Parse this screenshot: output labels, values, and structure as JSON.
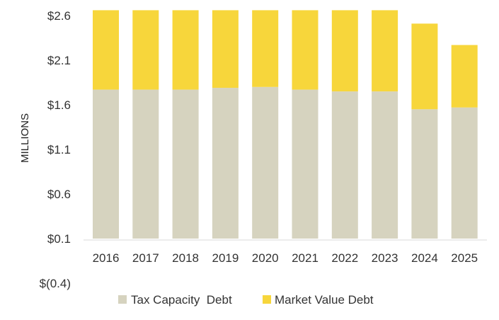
{
  "chart_data": {
    "type": "bar",
    "stacked": true,
    "categories": [
      "2016",
      "2017",
      "2018",
      "2019",
      "2020",
      "2021",
      "2022",
      "2023",
      "2024",
      "2025"
    ],
    "series": [
      {
        "name": "Tax Capacity  Debt",
        "color": "#d6d3bf",
        "values": [
          1.67,
          1.67,
          1.67,
          1.69,
          1.7,
          1.67,
          1.65,
          1.65,
          1.45,
          1.47
        ]
      },
      {
        "name": "Market Value Debt",
        "color": "#f7d63b",
        "values": [
          0.89,
          0.89,
          0.89,
          0.87,
          0.86,
          0.89,
          0.91,
          0.91,
          0.96,
          0.7
        ]
      }
    ],
    "ylabel": "MILLIONS",
    "ytick_labels": [
      "$2.6",
      "$2.1",
      "$1.6",
      "$1.1",
      "$0.6",
      "$0.1",
      "$(0.4)"
    ],
    "yticks": [
      2.6,
      2.1,
      1.6,
      1.1,
      0.6,
      0.1,
      -0.4
    ],
    "ylim": [
      -0.4,
      2.6
    ],
    "baseline": 0.1,
    "legend_position": "bottom"
  }
}
